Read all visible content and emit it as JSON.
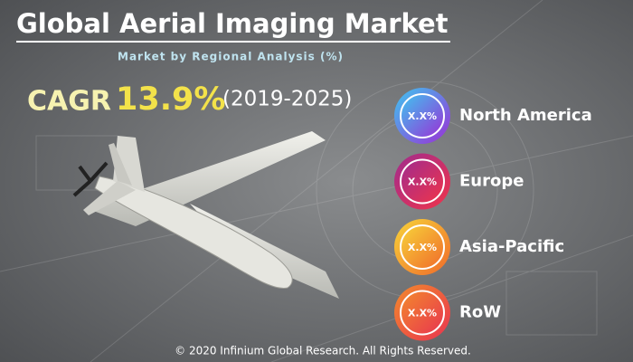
{
  "header": {
    "title": "Global Aerial Imaging Market",
    "subtitle": "Market by Regional Analysis (%)"
  },
  "cagr": {
    "label": "CAGR",
    "value": "13.9%",
    "period": "(2019-2025)"
  },
  "regions": [
    {
      "name": "North America",
      "share": "X.X%"
    },
    {
      "name": "Europe",
      "share": "X.X%"
    },
    {
      "name": "Asia-Pacific",
      "share": "X.X%"
    },
    {
      "name": "RoW",
      "share": "X.X%"
    }
  ],
  "footer": "© 2020 Infinium Global Research. All Rights Reserved."
}
